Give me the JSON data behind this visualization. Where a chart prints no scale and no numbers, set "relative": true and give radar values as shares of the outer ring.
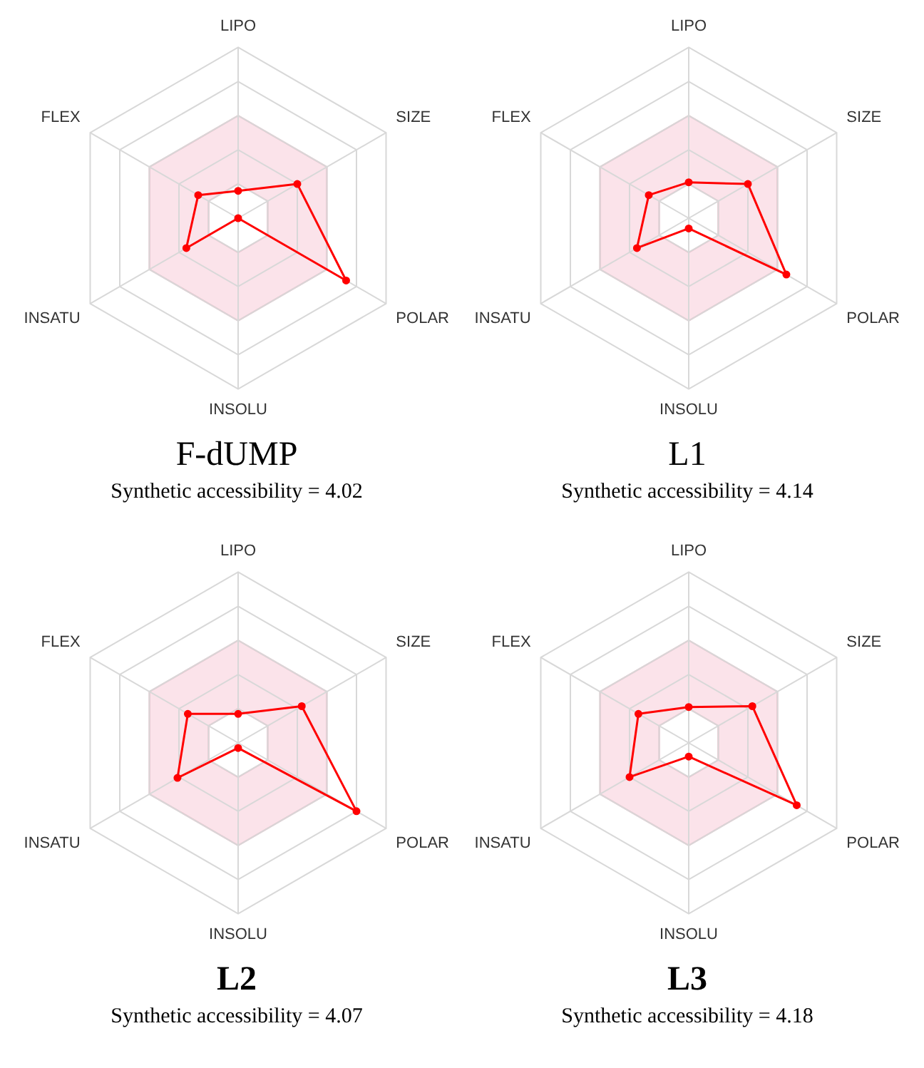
{
  "chart_data": [
    {
      "type": "radar",
      "title": "F-dUMP",
      "subtitle": "Synthetic accessibility = 4.02",
      "categories": [
        "LIPO",
        "SIZE",
        "POLAR",
        "INSOLU",
        "INSATU",
        "FLEX"
      ],
      "relative": true,
      "grid": true,
      "marker": "circle",
      "legend": false,
      "series": [
        {
          "color": "#ff0000",
          "values": [
            0.16,
            0.4,
            0.73,
            0.0,
            0.35,
            0.27
          ]
        }
      ]
    },
    {
      "type": "radar",
      "title": "L1",
      "subtitle": "Synthetic accessibility = 4.14",
      "categories": [
        "LIPO",
        "SIZE",
        "POLAR",
        "INSOLU",
        "INSATU",
        "FLEX"
      ],
      "relative": true,
      "grid": true,
      "marker": "circle",
      "legend": false,
      "series": [
        {
          "color": "#ff0000",
          "values": [
            0.21,
            0.4,
            0.66,
            0.06,
            0.35,
            0.27
          ]
        }
      ]
    },
    {
      "type": "radar",
      "title": "L2",
      "subtitle": "Synthetic accessibility = 4.07",
      "categories": [
        "LIPO",
        "SIZE",
        "POLAR",
        "INSOLU",
        "INSATU",
        "FLEX"
      ],
      "relative": true,
      "grid": true,
      "marker": "circle",
      "legend": false,
      "series": [
        {
          "color": "#ff0000",
          "values": [
            0.17,
            0.43,
            0.8,
            0.03,
            0.41,
            0.34
          ]
        }
      ]
    },
    {
      "type": "radar",
      "title": "L3",
      "subtitle": "Synthetic accessibility = 4.18",
      "categories": [
        "LIPO",
        "SIZE",
        "POLAR",
        "INSOLU",
        "INSATU",
        "FLEX"
      ],
      "relative": true,
      "grid": true,
      "marker": "circle",
      "legend": false,
      "series": [
        {
          "color": "#ff0000",
          "values": [
            0.21,
            0.43,
            0.73,
            0.08,
            0.4,
            0.34
          ]
        }
      ]
    }
  ]
}
